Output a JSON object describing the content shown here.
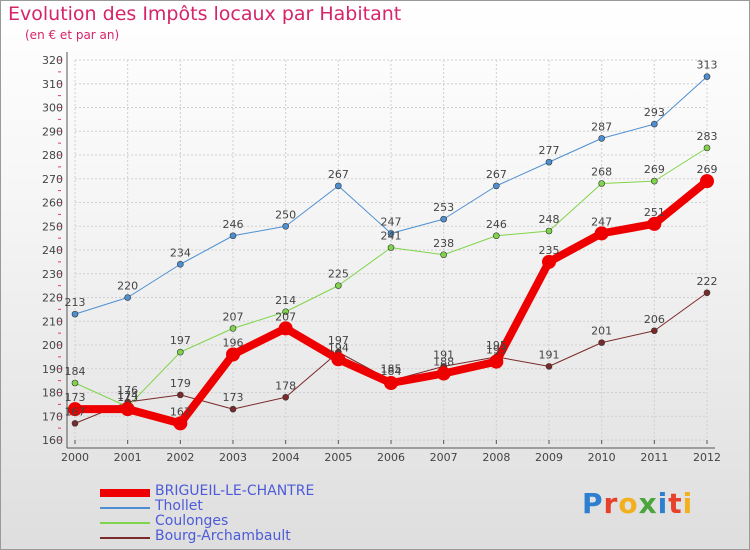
{
  "title": "Evolution des Impôts locaux par Habitant",
  "subtitle": "(en € et par an)",
  "logo": {
    "text": "Proxiti",
    "colors": [
      "#2f7fd0",
      "#e8412b",
      "#f2b01e",
      "#4aa63c",
      "#2f7fd0",
      "#e8412b",
      "#f2b01e"
    ]
  },
  "chart_data": {
    "type": "line",
    "title": "Evolution des Impôts locaux par Habitant",
    "subtitle": "(en € et par an)",
    "x": [
      "2000",
      "2001",
      "2002",
      "2003",
      "2004",
      "2005",
      "2006",
      "2007",
      "2008",
      "2009",
      "2010",
      "2011",
      "2012"
    ],
    "ylim": [
      160,
      320
    ],
    "yticks": [
      160,
      170,
      180,
      190,
      200,
      210,
      220,
      230,
      240,
      250,
      260,
      270,
      280,
      290,
      300,
      310,
      320
    ],
    "grid": true,
    "legend_position": "bottom-left",
    "series": [
      {
        "name": "Bourg-Archambault",
        "color": "#7a2a2a",
        "width": 1,
        "marker": 3,
        "values": [
          167,
          176,
          179,
          173,
          178,
          197,
          185,
          191,
          195,
          191,
          201,
          206,
          222
        ],
        "labels": [
          "167",
          "176",
          "179",
          "173",
          "178",
          "197",
          "185",
          "191",
          "195",
          "191",
          "201",
          "206",
          "222"
        ]
      },
      {
        "name": "Coulonges",
        "color": "#80d44b",
        "width": 1,
        "marker": 3,
        "values": [
          184,
          174,
          197,
          207,
          214,
          225,
          241,
          238,
          246,
          248,
          268,
          269,
          283
        ],
        "labels": [
          "184",
          "174",
          "197",
          "207",
          "214",
          "225",
          "241",
          "238",
          "246",
          "248",
          "268",
          "269",
          "283"
        ]
      },
      {
        "name": "Thollet",
        "color": "#4d8fd1",
        "width": 1,
        "marker": 3,
        "values": [
          213,
          220,
          234,
          246,
          250,
          267,
          247,
          253,
          267,
          277,
          287,
          293,
          313
        ],
        "labels": [
          "213",
          "220",
          "234",
          "246",
          "250",
          "267",
          "247",
          "253",
          "267",
          "277",
          "287",
          "293",
          "313"
        ]
      },
      {
        "name": "BRIGUEIL-LE-CHANTRE",
        "color": "#ee0000",
        "width": 8,
        "marker": 7,
        "values": [
          173,
          173,
          167,
          196,
          207,
          194,
          184,
          188,
          193,
          235,
          247,
          251,
          269
        ],
        "labels": [
          "173",
          "173",
          "167",
          "196",
          "207",
          "194",
          "184",
          "188",
          "193",
          "235",
          "247",
          "251",
          "269"
        ]
      }
    ],
    "legend_order": [
      "BRIGUEIL-LE-CHANTRE",
      "Thollet",
      "Coulonges",
      "Bourg-Archambault"
    ]
  }
}
